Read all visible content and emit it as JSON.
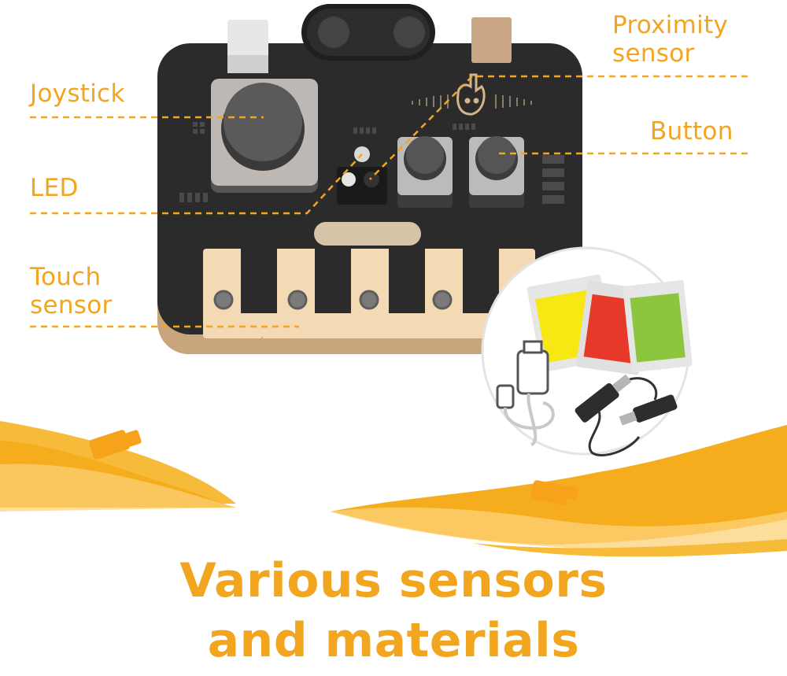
{
  "labels": {
    "joystick": "Joystick",
    "led": "LED",
    "touch_sensor": [
      "Touch",
      "sensor"
    ],
    "proximity_sensor": [
      "Proximity",
      "sensor"
    ],
    "button": "Button"
  },
  "headline": [
    "Various sensors",
    "and materials"
  ],
  "colors": {
    "accent": "#f2a51f",
    "board": "#2b2b2b",
    "key": "#f4d9b5",
    "led_yellow": "#f7e713",
    "led_red": "#e6392a",
    "led_green": "#8cc63f"
  },
  "icons": [
    "usb-cable-icon",
    "alligator-clip-icon",
    "led-packet-icon"
  ]
}
